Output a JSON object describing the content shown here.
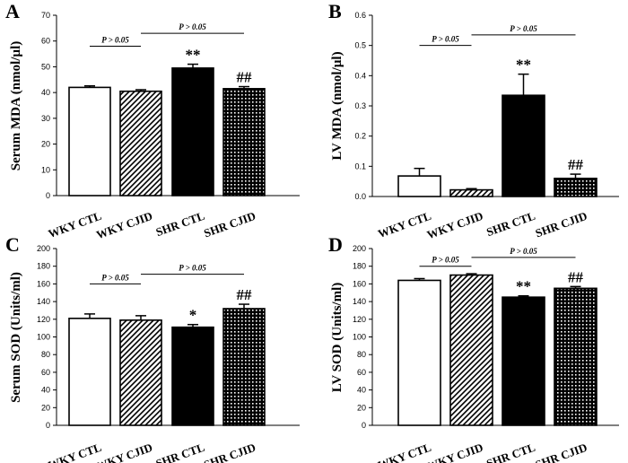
{
  "colors": {
    "wky_ctl": "#ffffff",
    "wky_cjid": "hatch",
    "shr_ctl": "#000000",
    "shr_cjid": "dots",
    "stroke": "#000000"
  },
  "chart_data": [
    {
      "panel": "A",
      "type": "bar",
      "categories": [
        "WKY CTL",
        "WKY CJID",
        "SHR CTL",
        "SHR CJID"
      ],
      "values": [
        42,
        40.5,
        49.5,
        41.5
      ],
      "errors": [
        0.6,
        0.6,
        1.5,
        0.8
      ],
      "annotations": [
        "",
        "",
        "**",
        "##"
      ],
      "ylabel": "Serum MDA (nmol/µl)",
      "ylim": [
        0,
        70
      ],
      "yticks": [
        0,
        10,
        20,
        30,
        40,
        50,
        60,
        70
      ],
      "ytick_labels": [
        "0",
        "10",
        "20",
        "30",
        "40",
        "50",
        "60",
        "70"
      ],
      "comparisons": [
        {
          "from": 0,
          "to": 1,
          "label": "P > 0.05",
          "y": 58
        },
        {
          "from": 1,
          "to": 3,
          "label": "P > 0.05",
          "y": 63
        }
      ]
    },
    {
      "panel": "B",
      "type": "bar",
      "categories": [
        "WKY CTL",
        "WKY CJID",
        "SHR CTL",
        "SHR CJID"
      ],
      "values": [
        0.068,
        0.022,
        0.335,
        0.06
      ],
      "errors": [
        0.025,
        0.004,
        0.07,
        0.014
      ],
      "annotations": [
        "",
        "",
        "**",
        "##"
      ],
      "ylabel": "LV MDA (nmol/µl)",
      "ylim": [
        0,
        0.6
      ],
      "yticks": [
        0,
        0.1,
        0.2,
        0.3,
        0.4,
        0.5,
        0.6
      ],
      "ytick_labels": [
        "0.0",
        "0.1",
        "0.2",
        "0.3",
        "0.4",
        "0.5",
        "0.6"
      ],
      "comparisons": [
        {
          "from": 0,
          "to": 1,
          "label": "P > 0.05",
          "y": 0.5
        },
        {
          "from": 1,
          "to": 3,
          "label": "P > 0.05",
          "y": 0.535
        }
      ]
    },
    {
      "panel": "C",
      "type": "bar",
      "categories": [
        "WKY CTL",
        "WKY CJID",
        "SHR CTL",
        "SHR CJID"
      ],
      "values": [
        121,
        119,
        111,
        132
      ],
      "errors": [
        5,
        5,
        3,
        5
      ],
      "annotations": [
        "",
        "",
        "*",
        "##"
      ],
      "ylabel": "Serum SOD (Units/ml)",
      "ylim": [
        0,
        200
      ],
      "yticks": [
        0,
        20,
        40,
        60,
        80,
        100,
        120,
        140,
        160,
        180,
        200
      ],
      "ytick_labels": [
        "0",
        "20",
        "40",
        "60",
        "80",
        "100",
        "120",
        "140",
        "160",
        "180",
        "200"
      ],
      "comparisons": [
        {
          "from": 0,
          "to": 1,
          "label": "P > 0.05",
          "y": 160
        },
        {
          "from": 1,
          "to": 3,
          "label": "P > 0.05",
          "y": 171
        }
      ]
    },
    {
      "panel": "D",
      "type": "bar",
      "categories": [
        "WKY CTL",
        "WKY CJID",
        "SHR CTL",
        "SHR CJID"
      ],
      "values": [
        164,
        170,
        145,
        155
      ],
      "errors": [
        2,
        1.5,
        1.5,
        2
      ],
      "annotations": [
        "",
        "",
        "**",
        "##"
      ],
      "ylabel": "LV SOD (Units/ml)",
      "ylim": [
        0,
        200
      ],
      "yticks": [
        0,
        20,
        40,
        60,
        80,
        100,
        120,
        140,
        160,
        180,
        200
      ],
      "ytick_labels": [
        "0",
        "20",
        "40",
        "60",
        "80",
        "100",
        "120",
        "140",
        "160",
        "180",
        "200"
      ],
      "comparisons": [
        {
          "from": 0,
          "to": 1,
          "label": "P > 0.05",
          "y": 180
        },
        {
          "from": 1,
          "to": 3,
          "label": "P > 0.05",
          "y": 190
        }
      ]
    }
  ]
}
